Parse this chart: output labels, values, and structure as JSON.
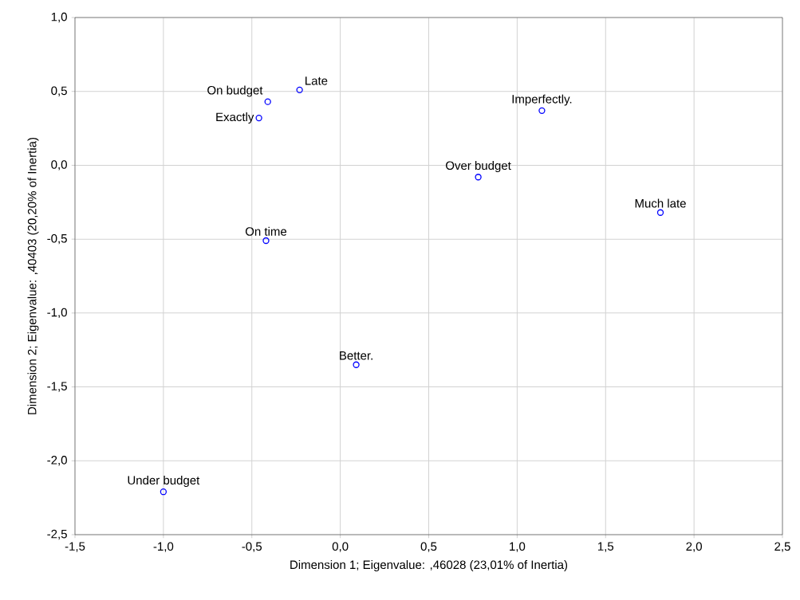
{
  "chart_data": {
    "type": "scatter",
    "xlabel": "Dimension 1; Eigenvalue: ,46028 (23,01% of Inertia)",
    "ylabel": "Dimension 2; Eigenvalue: ,40403 (20,20% of Inertia)",
    "x": [
      -0.23,
      -0.41,
      -0.46,
      1.14,
      0.78,
      1.81,
      -0.42,
      0.09,
      -1.0
    ],
    "values": [
      0.51,
      0.43,
      0.32,
      0.37,
      -0.08,
      -0.32,
      -0.51,
      -1.35,
      -2.21
    ],
    "color": "#0000ff",
    "marker": "circle",
    "grid": true,
    "xlim": [
      -1.5,
      2.5
    ],
    "ylim": [
      -2.5,
      1.0
    ],
    "xticks": [
      {
        "value": -1.5,
        "label": "-1,5"
      },
      {
        "value": -1.0,
        "label": "-1,0"
      },
      {
        "value": -0.5,
        "label": "-0,5"
      },
      {
        "value": 0.0,
        "label": "0,0"
      },
      {
        "value": 0.5,
        "label": "0,5"
      },
      {
        "value": 1.0,
        "label": "1,0"
      },
      {
        "value": 1.5,
        "label": "1,5"
      },
      {
        "value": 2.0,
        "label": "2,0"
      },
      {
        "value": 2.5,
        "label": "2,5"
      }
    ],
    "yticks": [
      {
        "value": -2.5,
        "label": "-2,5"
      },
      {
        "value": -2.0,
        "label": "-2,0"
      },
      {
        "value": -1.5,
        "label": "-1,5"
      },
      {
        "value": -1.0,
        "label": "-1,0"
      },
      {
        "value": -0.5,
        "label": "-0,5"
      },
      {
        "value": 0.0,
        "label": "0,0"
      },
      {
        "value": 0.5,
        "label": "0,5"
      },
      {
        "value": 1.0,
        "label": "1,0"
      }
    ],
    "annotations": [
      {
        "text": "Late",
        "x": -0.23,
        "y": 0.51
      },
      {
        "text": "On budget",
        "x": -0.41,
        "y": 0.43
      },
      {
        "text": "Exactly",
        "x": -0.46,
        "y": 0.32
      },
      {
        "text": "Imperfectly.",
        "x": 1.14,
        "y": 0.37
      },
      {
        "text": "Over budget",
        "x": 0.78,
        "y": -0.08
      },
      {
        "text": "Much late",
        "x": 1.81,
        "y": -0.32
      },
      {
        "text": "On time",
        "x": -0.42,
        "y": -0.51
      },
      {
        "text": "Better.",
        "x": 0.09,
        "y": -1.35
      },
      {
        "text": "Under budget",
        "x": -1.0,
        "y": -2.21
      }
    ]
  }
}
